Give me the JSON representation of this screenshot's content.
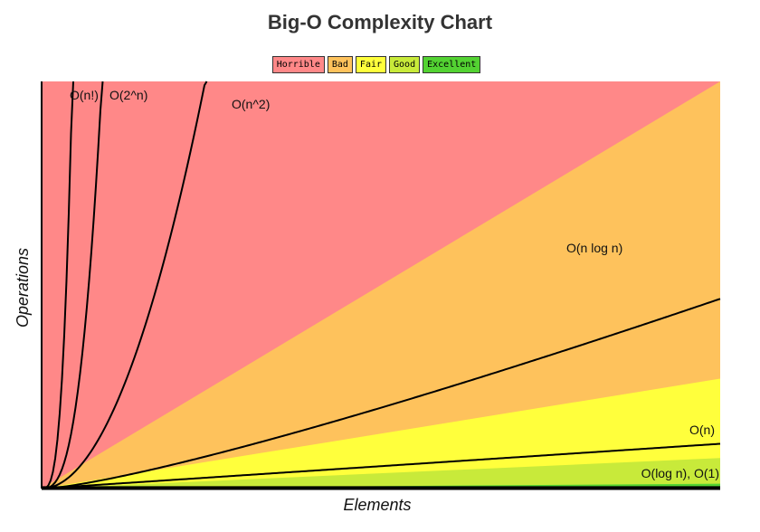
{
  "title": "Big-O Complexity Chart",
  "legend": [
    {
      "label": "Horrible",
      "color": "#ff8888"
    },
    {
      "label": "Bad",
      "color": "#fec25c"
    },
    {
      "label": "Fair",
      "color": "#ffff3c"
    },
    {
      "label": "Good",
      "color": "#c8ea3a"
    },
    {
      "label": "Excellent",
      "color": "#53d232"
    }
  ],
  "chart_data": {
    "type": "line",
    "title": "Big-O Complexity Chart",
    "xlabel": "Elements",
    "ylabel": "Operations",
    "xlim": [
      0,
      100
    ],
    "ylim": [
      0,
      1000
    ],
    "grid": false,
    "legend_position": "top-center",
    "regions": [
      {
        "name": "Horrible",
        "color": "#ff8888",
        "slope": null
      },
      {
        "name": "Bad",
        "color": "#fec25c",
        "slope": 10
      },
      {
        "name": "Fair",
        "color": "#ffff3c",
        "slope": 2.7
      },
      {
        "name": "Good",
        "color": "#c8ea3a",
        "slope": 0.75
      },
      {
        "name": "Excellent",
        "color": "#53d232",
        "slope": 0.12
      }
    ],
    "series": [
      {
        "name": "O(n!)",
        "fn": "factorial"
      },
      {
        "name": "O(2^n)",
        "fn": "exponential"
      },
      {
        "name": "O(n^2)",
        "fn": "quadratic"
      },
      {
        "name": "O(n log n)",
        "fn": "nlogn"
      },
      {
        "name": "O(n)",
        "fn": "linear"
      },
      {
        "name": "O(log n), O(1)",
        "fn": "constant"
      }
    ]
  }
}
